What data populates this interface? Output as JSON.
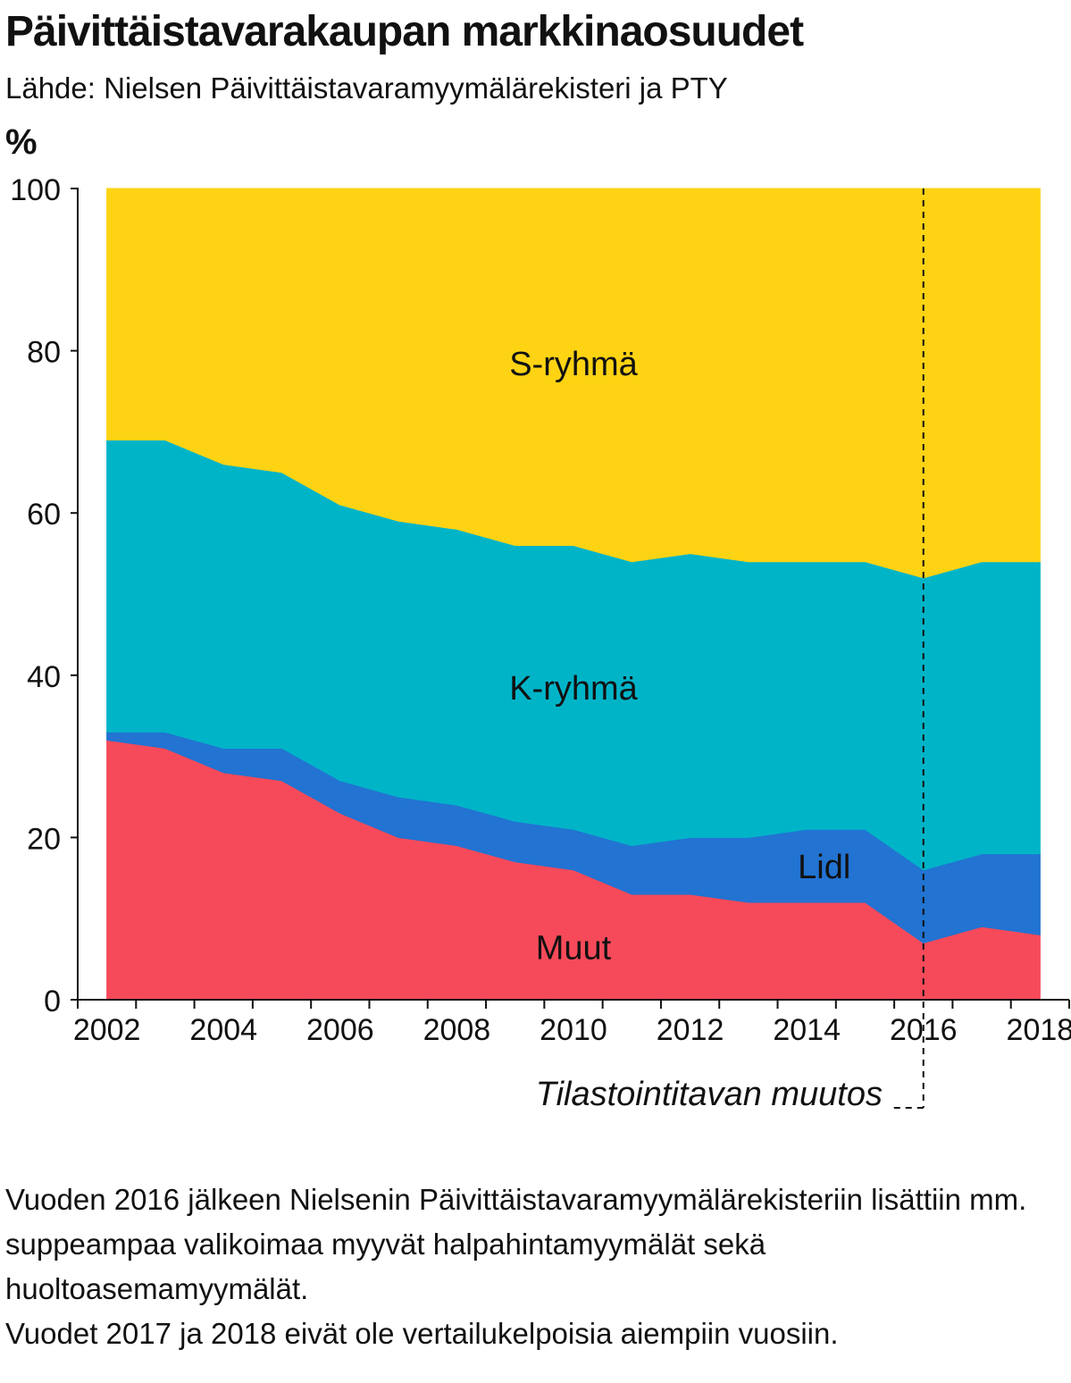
{
  "title": "Päivittäistavarakaupan markkinaosuudet",
  "subtitle": "Lähde: Nielsen Päivittäistavaramyymälärekisteri ja PTY",
  "footnote": {
    "line1": "Vuoden 2016 jälkeen Nielsenin Päivittäistavaramyymälärekisteriin lisättiin mm. suppeampaa valikoimaa myyvät halpahintamyymälät sekä huoltoasemamyymälät.",
    "line2": "Vuodet 2017 ja 2018 eivät ole vertailukelpoisia aiempiin vuosiin."
  },
  "chart_data": {
    "type": "area",
    "stacked": true,
    "ylabel": "%",
    "ylim": [
      0,
      100
    ],
    "yticks": [
      "0",
      "20",
      "40",
      "60",
      "80",
      "100"
    ],
    "xticks": [
      "2002",
      "2004",
      "2006",
      "2008",
      "2010",
      "2012",
      "2014",
      "2016",
      "2018"
    ],
    "x": [
      2002,
      2003,
      2004,
      2005,
      2006,
      2007,
      2008,
      2009,
      2010,
      2011,
      2012,
      2013,
      2014,
      2015,
      2016,
      2017,
      2018
    ],
    "series": [
      {
        "name": "Muut",
        "color": "#f64a5a",
        "values": [
          32,
          31,
          28,
          27,
          23,
          20,
          19,
          17,
          16,
          13,
          13,
          12,
          12,
          12,
          7,
          9,
          8
        ]
      },
      {
        "name": "Lidl",
        "color": "#2273d2",
        "values": [
          1,
          2,
          3,
          4,
          4,
          5,
          5,
          5,
          5,
          6,
          7,
          8,
          9,
          9,
          9,
          9,
          10
        ]
      },
      {
        "name": "K-ryhmä",
        "color": "#00b4c8",
        "values": [
          36,
          36,
          35,
          34,
          34,
          34,
          34,
          34,
          35,
          35,
          35,
          34,
          33,
          33,
          36,
          36,
          36
        ]
      },
      {
        "name": "S-ryhmä",
        "color": "#fed314",
        "values": [
          31,
          31,
          34,
          35,
          39,
          41,
          42,
          44,
          44,
          46,
          45,
          46,
          46,
          46,
          48,
          46,
          46
        ]
      }
    ],
    "annotation": {
      "x": 2016,
      "label": "Tilastointitavan muutos",
      "style": "dashed"
    }
  }
}
